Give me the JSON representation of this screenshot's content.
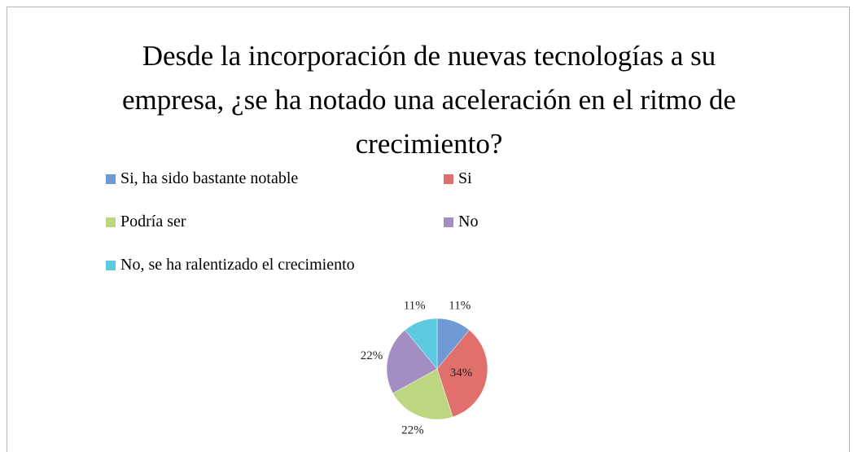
{
  "chart_data": {
    "type": "pie",
    "title": "Desde la incorporación de nuevas tecnologías a su empresa, ¿se ha notado una aceleración en el ritmo de crecimiento?",
    "categories": [
      "Si, ha sido bastante notable",
      "Si",
      "Podría ser",
      "No",
      "No, se ha ralentizado el crecimiento"
    ],
    "values": [
      11,
      34,
      22,
      22,
      11
    ],
    "value_labels": [
      "11%",
      "34%",
      "22%",
      "22%",
      "11%"
    ],
    "colors": [
      "#6f9ad6",
      "#e16f6c",
      "#bcd77f",
      "#a38ec4",
      "#5ccbe0"
    ],
    "legend": "top"
  }
}
